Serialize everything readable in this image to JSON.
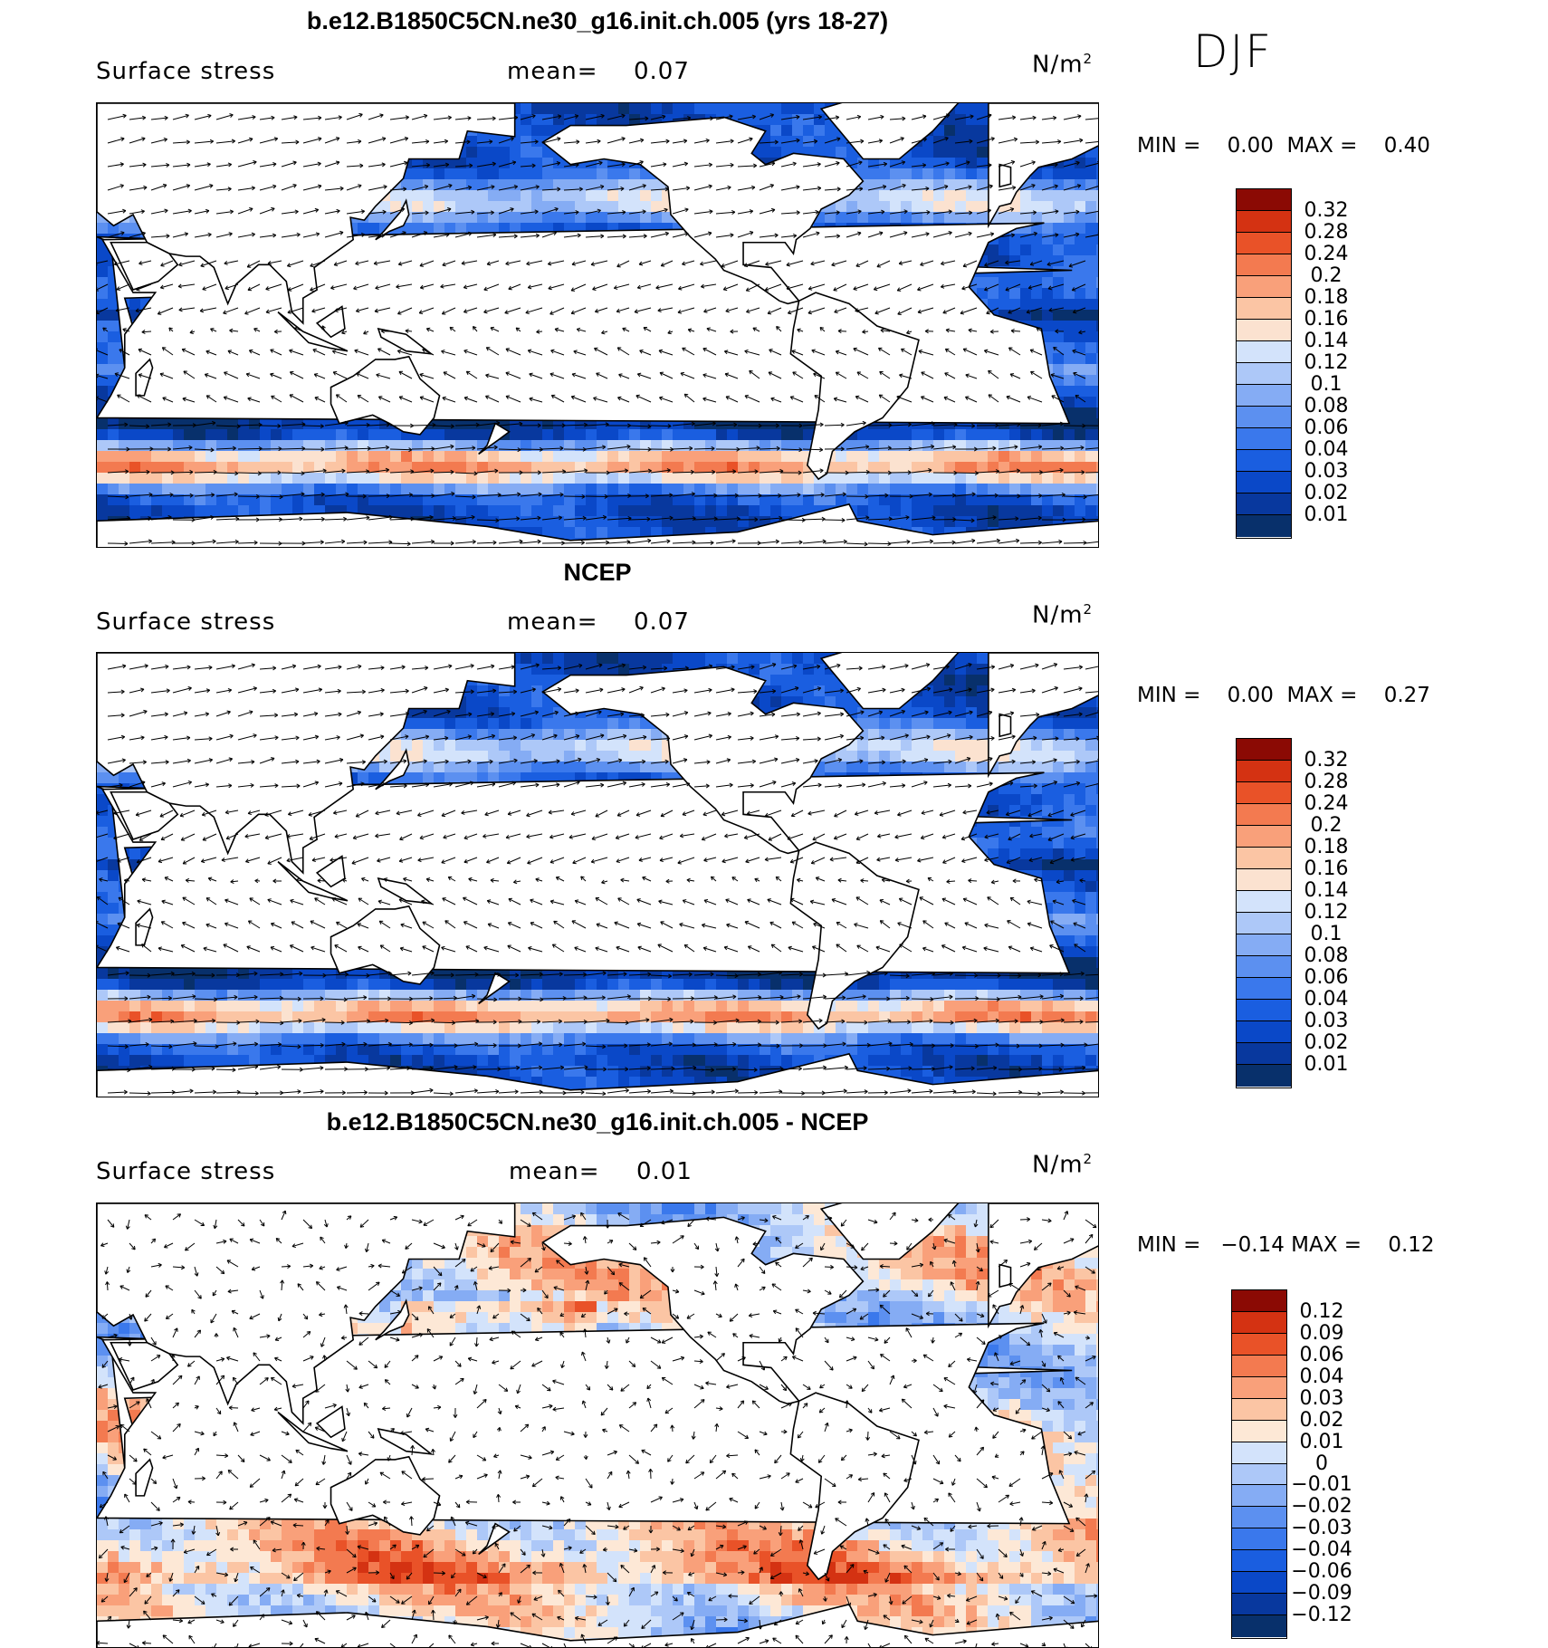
{
  "season": "DJF",
  "colors": {
    "blue_scale": [
      "#08306b",
      "#08389e",
      "#0a48c8",
      "#1a5ee0",
      "#3a78ec",
      "#5c90f0",
      "#85acf4",
      "#adc8f8",
      "#d3e3fb",
      "#fbe2d0",
      "#fbc5a4",
      "#f9a07a",
      "#f37a50",
      "#e95228",
      "#d43212",
      "#8b0a04"
    ],
    "diff_scale": [
      "#08306b",
      "#08389e",
      "#0a48c8",
      "#1a5ee0",
      "#3a78ec",
      "#5c90f0",
      "#85acf4",
      "#adc8f8",
      "#d3e3fb",
      "#fde8d6",
      "#fbc5a4",
      "#f9a07a",
      "#f37a50",
      "#e95228",
      "#d43212",
      "#8b0a04"
    ],
    "land": "#ffffff",
    "coast": "#000000"
  },
  "panels": [
    {
      "title": "b.e12.B1850C5CN.ne30_g16.init.ch.005 (yrs 18-27)",
      "variable": "Surface stress",
      "mean_label": "mean=",
      "mean_value": "0.07",
      "units_base": "N/m",
      "units_exp": "2",
      "min_label": "MIN =",
      "min_value": "0.00",
      "max_label": "MAX =",
      "max_value": "0.40",
      "colorbar_labels": [
        "0.32",
        "0.28",
        "0.24",
        "0.2",
        "0.18",
        "0.16",
        "0.14",
        "0.12",
        "0.1",
        "0.08",
        "0.06",
        "0.04",
        "0.03",
        "0.02",
        "0.01"
      ]
    },
    {
      "title": "NCEP",
      "variable": "Surface stress",
      "mean_label": "mean=",
      "mean_value": "0.07",
      "units_base": "N/m",
      "units_exp": "2",
      "min_label": "MIN =",
      "min_value": "0.00",
      "max_label": "MAX =",
      "max_value": "0.27",
      "colorbar_labels": [
        "0.32",
        "0.28",
        "0.24",
        "0.2",
        "0.18",
        "0.16",
        "0.14",
        "0.12",
        "0.1",
        "0.08",
        "0.06",
        "0.04",
        "0.03",
        "0.02",
        "0.01"
      ]
    },
    {
      "title": "b.e12.B1850C5CN.ne30_g16.init.ch.005 - NCEP",
      "variable": "Surface stress",
      "mean_label": "mean=",
      "mean_value": "0.01",
      "units_base": "N/m",
      "units_exp": "2",
      "min_label": "MIN =",
      "min_value": "−0.14",
      "max_label": "MAX =",
      "max_value": "0.12",
      "colorbar_labels": [
        "0.12",
        "0.09",
        "0.06",
        "0.04",
        "0.03",
        "0.02",
        "0.01",
        "0",
        "−0.01",
        "−0.02",
        "−0.03",
        "−0.04",
        "−0.06",
        "−0.09",
        "−0.12"
      ]
    }
  ]
}
